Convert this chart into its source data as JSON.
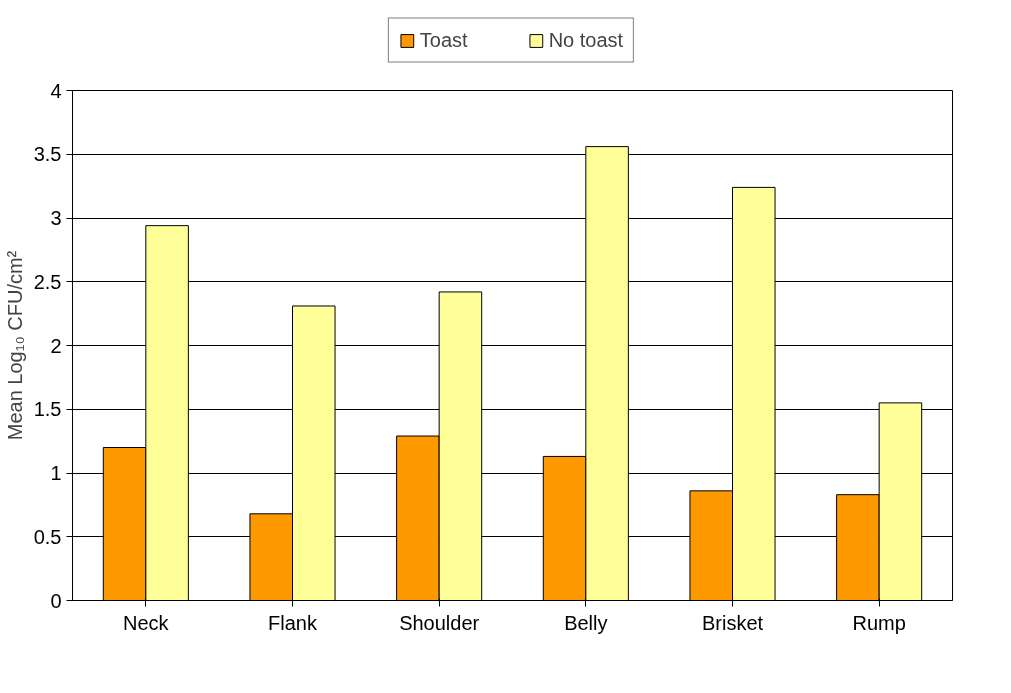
{
  "chart_data": {
    "type": "bar",
    "ylabel": "Mean Log₁₀ CFU/cm²",
    "categories": [
      "Neck",
      "Flank",
      "Shoulder",
      "Belly",
      "Brisket",
      "Rump"
    ],
    "series": [
      {
        "name": "Toast",
        "color": "#ff9900",
        "values": [
          1.2,
          0.68,
          1.29,
          1.13,
          0.86,
          0.83
        ]
      },
      {
        "name": "No toast",
        "color": "#ffff99",
        "values": [
          2.94,
          2.31,
          2.42,
          3.56,
          3.24,
          1.55
        ]
      }
    ],
    "ylim": [
      0,
      4
    ],
    "yticks": [
      0,
      0.5,
      1,
      1.5,
      2,
      2.5,
      3,
      3.5,
      4
    ],
    "grid": "y",
    "legend": "top"
  }
}
